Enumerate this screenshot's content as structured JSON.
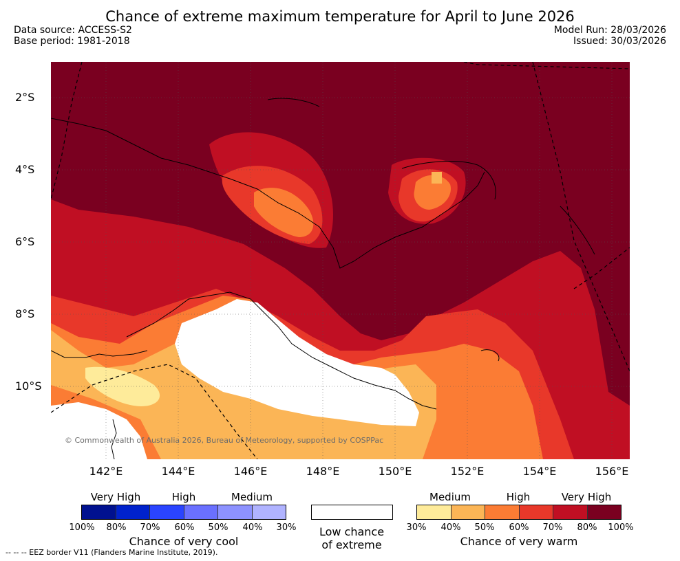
{
  "title": "Chance of extreme maximum temperature for April to June 2026",
  "data_source": "Data source: ACCESS-S2",
  "base_period": "Base period: 1981-2018",
  "model_run": "Model Run: 28/03/2026",
  "issued": "Issued: 30/03/2026",
  "map": {
    "lat_labels": [
      "2°S",
      "4°S",
      "6°S",
      "8°S",
      "10°S"
    ],
    "lon_labels": [
      "142°E",
      "144°E",
      "146°E",
      "148°E",
      "150°E",
      "152°E",
      "154°E",
      "156°E"
    ],
    "copyright": "© Commonwealth of Australia 2026, Bureau of Meteorology, supported by COSPPac",
    "colors": {
      "very_high": "#7a0020",
      "high": "#c00f23",
      "p60": "#e8382a",
      "p50": "#fb7c34",
      "p40": "#fbb556",
      "p30": "#feeb9a",
      "none": "#ffffff"
    }
  },
  "legend": {
    "cool": {
      "categories": [
        "Very High",
        "High",
        "Medium"
      ],
      "percents": [
        "100%",
        "80%",
        "70%",
        "60%",
        "50%",
        "40%",
        "30%"
      ],
      "colors": [
        "#00118f",
        "#0022cc",
        "#2a44ff",
        "#6a70ff",
        "#8d92ff",
        "#b0b3ff"
      ],
      "caption": "Chance of very cool"
    },
    "none": {
      "caption_line1": "Low chance",
      "caption_line2": "of extreme"
    },
    "warm": {
      "categories": [
        "Medium",
        "High",
        "Very High"
      ],
      "percents": [
        "30%",
        "40%",
        "50%",
        "60%",
        "70%",
        "80%",
        "100%"
      ],
      "colors": [
        "#feeb9a",
        "#fbb556",
        "#fb7c34",
        "#e8382a",
        "#c00f23",
        "#7a0020"
      ],
      "caption": "Chance of very warm"
    }
  },
  "eez_note": "--  --  -- EEZ border V11 (Flanders Marine Institute, 2019)."
}
